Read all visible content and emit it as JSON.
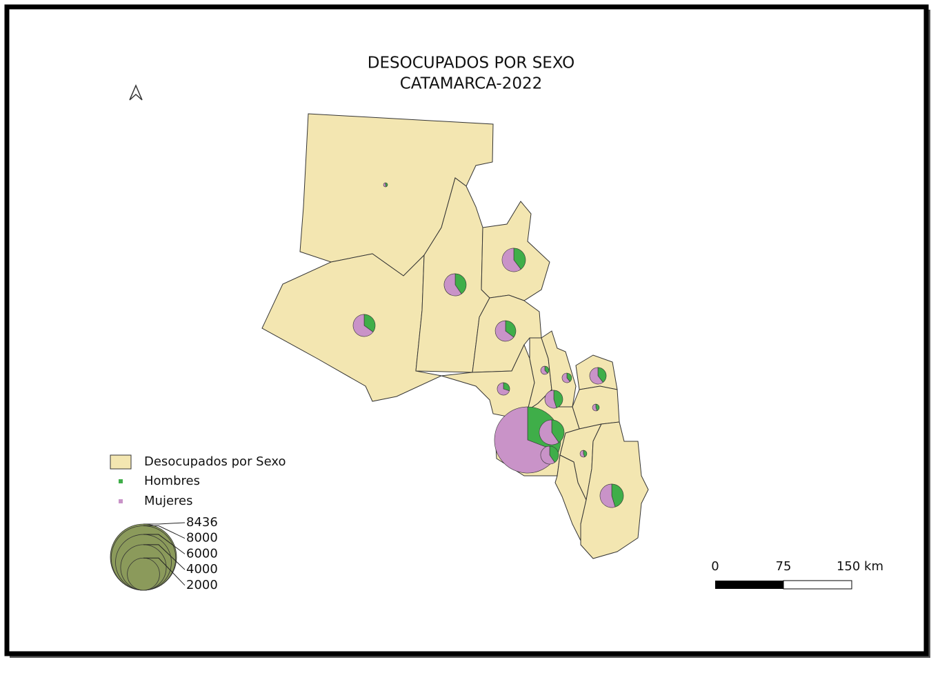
{
  "title": [
    "DESOCUPADOS POR SEXO",
    "CATAMARCA-2022"
  ],
  "legend": {
    "layer": "Desocupados por Sexo",
    "items": [
      {
        "label": "Hombres",
        "color": "#3fae49"
      },
      {
        "label": "Mujeres",
        "color": "#c993c8"
      }
    ],
    "fill": "#f3e6b1",
    "sizes": [
      8436,
      8000,
      6000,
      4000,
      2000
    ],
    "size_color": "#8b9a5b"
  },
  "pies": [
    {
      "hombres": 15,
      "mujeres": 18
    },
    {
      "hombres": 380,
      "mujeres": 560
    },
    {
      "hombres": 420,
      "mujeres": 640
    },
    {
      "hombres": 330,
      "mujeres": 610
    },
    {
      "hombres": 290,
      "mujeres": 530
    },
    {
      "hombres": 90,
      "mujeres": 210
    },
    {
      "hombres": 50,
      "mujeres": 80
    },
    {
      "hombres": 70,
      "mujeres": 110
    },
    {
      "hombres": 210,
      "mujeres": 320
    },
    {
      "hombres": 280,
      "mujeres": 340
    },
    {
      "hombres": 40,
      "mujeres": 50
    },
    {
      "hombres": 2600,
      "mujeres": 5836
    },
    {
      "hombres": 480,
      "mujeres": 710
    },
    {
      "hombres": 250,
      "mujeres": 370
    },
    {
      "hombres": 40,
      "mujeres": 50
    },
    {
      "hombres": 480,
      "mujeres": 580
    }
  ],
  "scale_bar": {
    "ticks": [
      0,
      75,
      {
        "value": 150,
        "label": "150 km"
      }
    ]
  }
}
